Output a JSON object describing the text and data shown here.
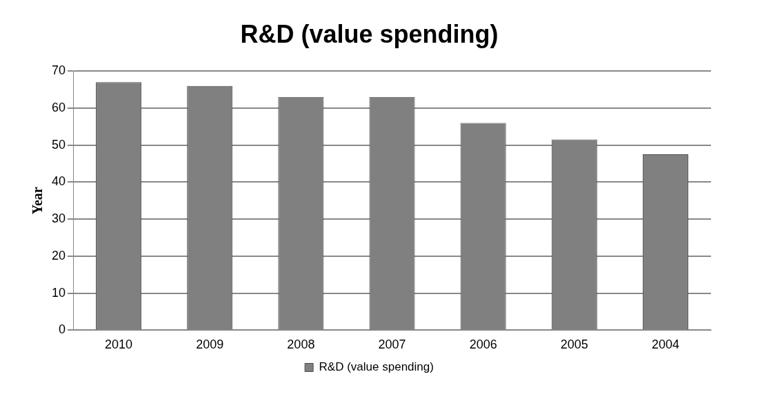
{
  "chart_data": {
    "type": "bar",
    "title": "R&D (value spending)",
    "ylabel": "Year",
    "categories": [
      "2010",
      "2009",
      "2008",
      "2007",
      "2006",
      "2005",
      "2004"
    ],
    "series": [
      {
        "name": "R&D (value spending)",
        "color": "#808080",
        "values": [
          67,
          66,
          63,
          63,
          56,
          51.5,
          47.5
        ]
      }
    ],
    "ylim": [
      0,
      70
    ],
    "yticks": [
      0,
      10,
      20,
      30,
      40,
      50,
      60,
      70
    ],
    "grid": "y",
    "legend": "bottom"
  }
}
